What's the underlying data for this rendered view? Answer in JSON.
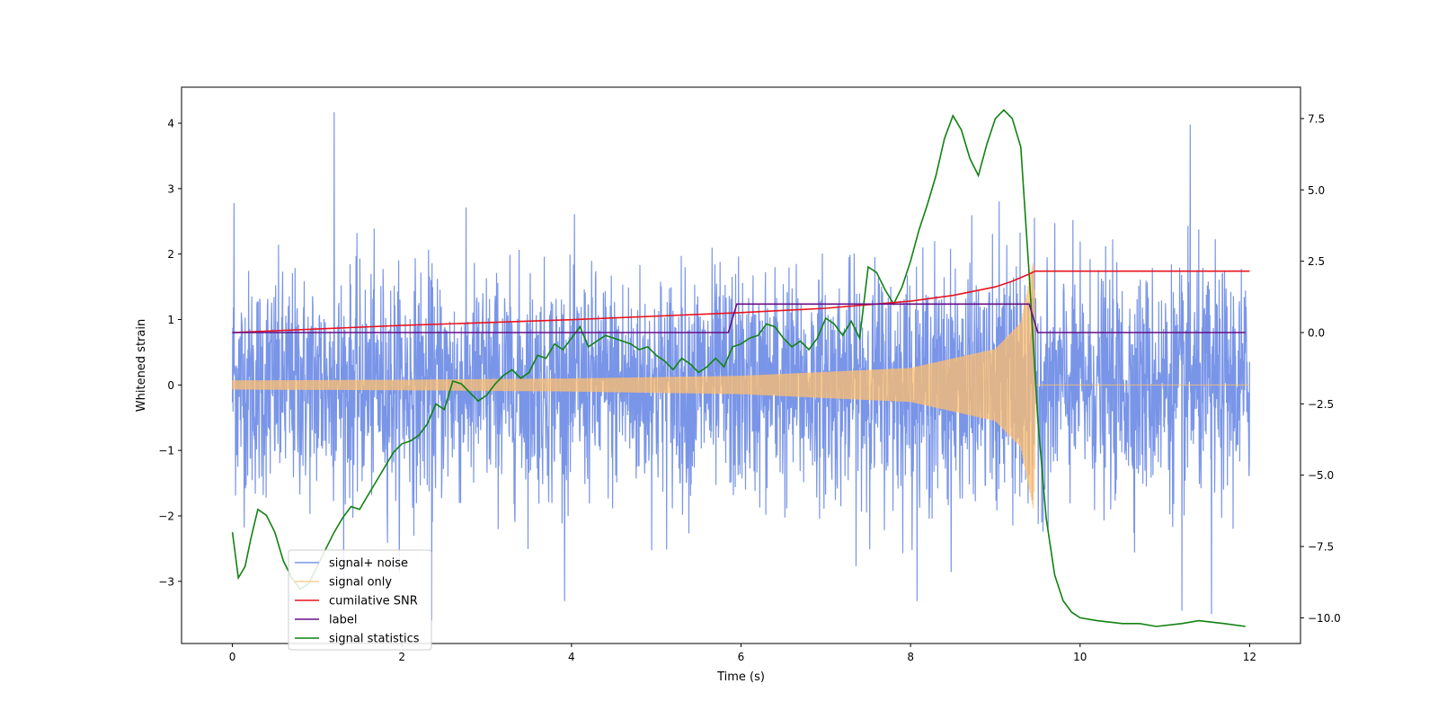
{
  "chart_data": {
    "type": "line",
    "xlabel": "Time (s)",
    "ylabel": "Whitened strain",
    "ylabel_right": "",
    "xlim": [
      -0.6,
      12.6
    ],
    "ylim_left": [
      -3.95,
      4.55
    ],
    "ylim_right": [
      -10.9,
      8.6
    ],
    "x_ticks": [
      0,
      2,
      4,
      6,
      8,
      10,
      12
    ],
    "y_ticks_left": [
      -3,
      -2,
      -1,
      0,
      1,
      2,
      3,
      4
    ],
    "y_ticks_right": [
      -10.0,
      -7.5,
      -5.0,
      -2.5,
      0.0,
      2.5,
      5.0,
      7.5
    ],
    "grid": false,
    "legend_position": "lower-left",
    "series": [
      {
        "name": "signal+ noise",
        "axis": "left",
        "color": "#6a8ae6",
        "style": "dense-noise",
        "x_range": [
          0,
          12
        ],
        "noise_sigma": 0.85,
        "peak_values": [
          [
            1.2,
            4.17
          ],
          [
            0.02,
            2.78
          ],
          [
            11.3,
            3.98
          ]
        ],
        "trough_values": [
          [
            2.35,
            -3.6
          ],
          [
            11.55,
            -3.5
          ],
          [
            11.2,
            -3.45
          ]
        ]
      },
      {
        "name": "signal only",
        "axis": "left",
        "color": "#ffbf6e",
        "style": "chirp",
        "x_range": [
          0,
          12
        ],
        "merger_time": 9.47,
        "amplitude_envelope": [
          [
            0.0,
            0.07
          ],
          [
            2.0,
            0.08
          ],
          [
            4.0,
            0.1
          ],
          [
            6.0,
            0.14
          ],
          [
            8.0,
            0.26
          ],
          [
            9.0,
            0.55
          ],
          [
            9.3,
            0.95
          ],
          [
            9.45,
            1.9
          ],
          [
            9.5,
            0.0
          ],
          [
            12.0,
            0.0
          ]
        ]
      },
      {
        "name": "cumilative SNR",
        "axis": "right",
        "color": "#e8141e",
        "x": [
          0,
          2,
          4,
          6,
          7,
          8,
          8.5,
          9,
          9.2,
          9.4,
          9.47,
          9.5,
          12
        ],
        "y": [
          0.0,
          0.25,
          0.45,
          0.7,
          0.85,
          1.1,
          1.3,
          1.6,
          1.8,
          2.05,
          2.15,
          2.15,
          2.15
        ]
      },
      {
        "name": "label",
        "axis": "right",
        "color": "#6a0e86",
        "x": [
          0,
          5.85,
          5.95,
          9.4,
          9.5,
          11.95
        ],
        "y": [
          0.0,
          0.0,
          1.0,
          1.0,
          0.0,
          0.0
        ]
      },
      {
        "name": "signal statistics",
        "axis": "right",
        "color": "#118211",
        "x": [
          0.0,
          0.07,
          0.15,
          0.22,
          0.3,
          0.4,
          0.5,
          0.6,
          0.7,
          0.8,
          0.9,
          1.0,
          1.1,
          1.2,
          1.3,
          1.4,
          1.5,
          1.6,
          1.7,
          1.8,
          1.9,
          2.0,
          2.1,
          2.2,
          2.3,
          2.4,
          2.5,
          2.6,
          2.7,
          2.8,
          2.9,
          3.0,
          3.1,
          3.2,
          3.3,
          3.4,
          3.5,
          3.6,
          3.7,
          3.8,
          3.9,
          4.0,
          4.1,
          4.2,
          4.3,
          4.4,
          4.5,
          4.6,
          4.7,
          4.8,
          4.9,
          5.0,
          5.1,
          5.2,
          5.3,
          5.4,
          5.5,
          5.6,
          5.7,
          5.8,
          5.9,
          6.0,
          6.1,
          6.2,
          6.3,
          6.4,
          6.5,
          6.6,
          6.7,
          6.8,
          6.9,
          7.0,
          7.1,
          7.2,
          7.3,
          7.4,
          7.5,
          7.6,
          7.7,
          7.8,
          7.9,
          8.0,
          8.1,
          8.2,
          8.3,
          8.4,
          8.5,
          8.6,
          8.7,
          8.8,
          8.9,
          9.0,
          9.1,
          9.2,
          9.3,
          9.4,
          9.5,
          9.6,
          9.7,
          9.8,
          9.9,
          10.0,
          10.2,
          10.5,
          10.7,
          10.9,
          11.2,
          11.4,
          11.7,
          11.95
        ],
        "y": [
          -7.0,
          -8.6,
          -8.2,
          -7.2,
          -6.2,
          -6.4,
          -7.0,
          -8.0,
          -8.6,
          -9.0,
          -8.8,
          -8.2,
          -7.6,
          -7.0,
          -6.5,
          -6.1,
          -6.2,
          -5.7,
          -5.2,
          -4.7,
          -4.2,
          -3.9,
          -3.8,
          -3.6,
          -3.2,
          -2.5,
          -2.7,
          -1.7,
          -1.8,
          -2.1,
          -2.4,
          -2.2,
          -1.8,
          -1.5,
          -1.3,
          -1.6,
          -1.4,
          -0.8,
          -0.9,
          -0.4,
          -0.6,
          -0.2,
          0.2,
          -0.5,
          -0.3,
          -0.1,
          -0.2,
          -0.3,
          -0.4,
          -0.6,
          -0.5,
          -0.8,
          -1.0,
          -1.3,
          -0.9,
          -1.1,
          -1.4,
          -1.2,
          -0.9,
          -1.2,
          -0.5,
          -0.4,
          -0.2,
          -0.1,
          0.3,
          0.2,
          -0.2,
          -0.5,
          -0.3,
          -0.6,
          -0.2,
          0.5,
          0.3,
          -0.1,
          0.4,
          -0.2,
          2.3,
          2.1,
          1.5,
          1.0,
          1.6,
          2.5,
          3.6,
          4.5,
          5.5,
          6.8,
          7.6,
          7.1,
          6.1,
          5.5,
          6.6,
          7.5,
          7.8,
          7.5,
          6.5,
          2.0,
          -3.0,
          -6.5,
          -8.5,
          -9.4,
          -9.8,
          -10.0,
          -10.1,
          -10.2,
          -10.2,
          -10.3,
          -10.2,
          -10.1,
          -10.2,
          -10.3
        ]
      }
    ]
  }
}
